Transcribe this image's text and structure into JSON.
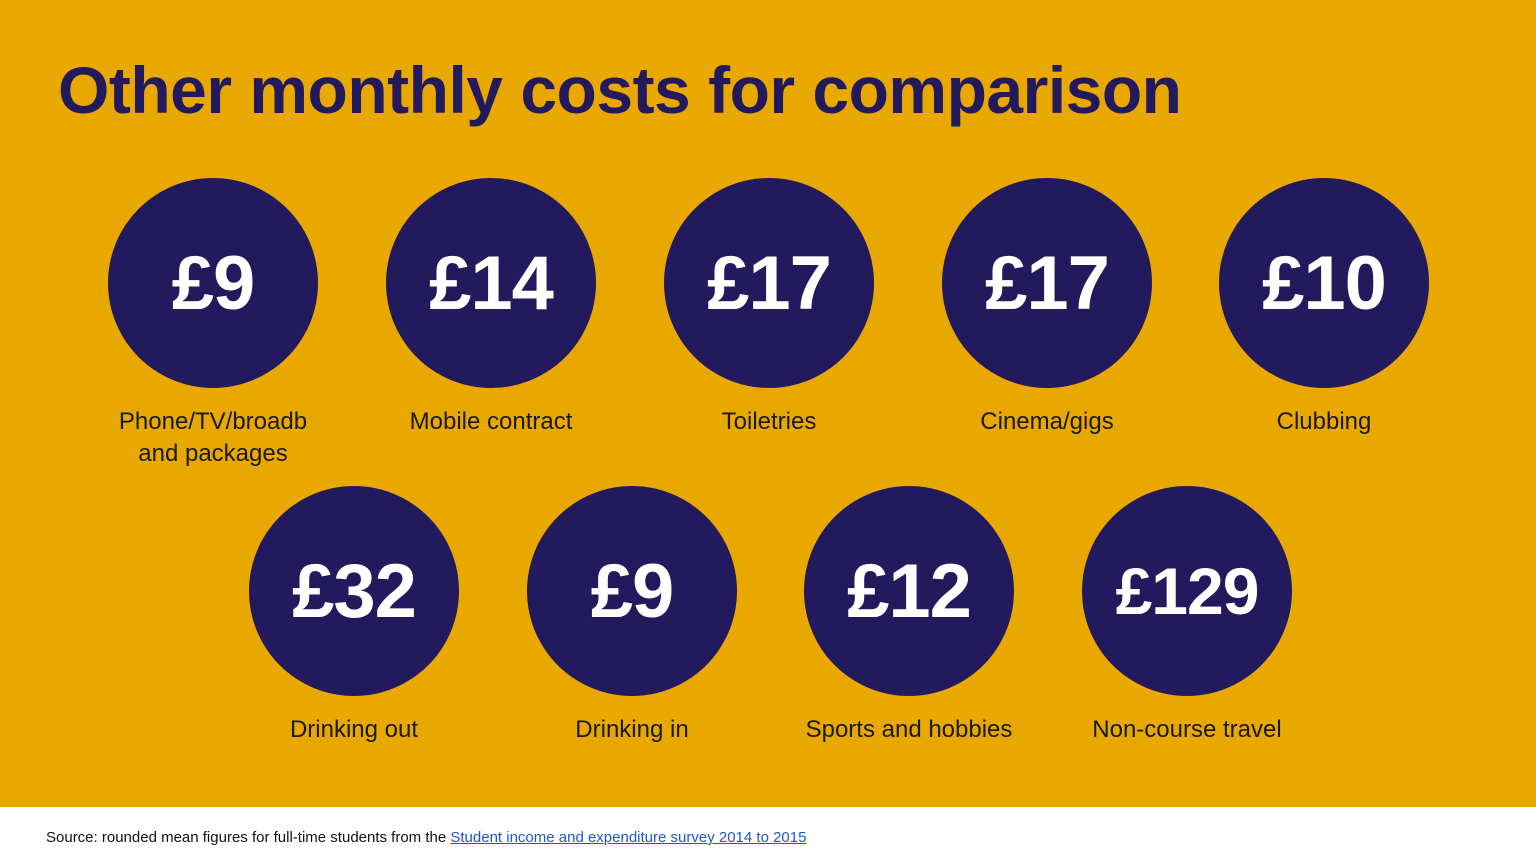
{
  "title": "Other monthly costs for comparison",
  "items": [
    {
      "amount": "£9",
      "label": "Phone/TV/broadb and packages"
    },
    {
      "amount": "£14",
      "label": "Mobile contract"
    },
    {
      "amount": "£17",
      "label": "Toiletries"
    },
    {
      "amount": "£17",
      "label": "Cinema/gigs"
    },
    {
      "amount": "£10",
      "label": "Clubbing"
    },
    {
      "amount": "£32",
      "label": "Drinking out"
    },
    {
      "amount": "£9",
      "label": "Drinking in"
    },
    {
      "amount": "£12",
      "label": "Sports and hobbies"
    },
    {
      "amount": "£129",
      "label": "Non-course travel"
    }
  ],
  "footer": {
    "source_text": "Source: rounded mean figures for full-time students from the ",
    "link_text": "Student income and expenditure survey 2014 to 2015"
  },
  "colors": {
    "background": "#e8a800",
    "circle": "#231a5e",
    "title": "#231a5e",
    "link": "#1f57c7"
  }
}
